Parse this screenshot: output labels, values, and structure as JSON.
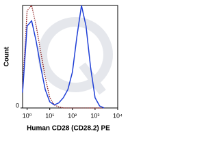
{
  "chart_data": {
    "type": "line",
    "x_label": "Human CD28 (CD28.2) PE",
    "y_label": "Count",
    "x": [
      -0.2,
      0,
      0.2,
      0.4,
      0.6,
      0.8,
      1.0,
      1.2,
      1.4,
      1.6,
      1.8,
      2.0,
      2.2,
      2.4,
      2.6,
      2.8,
      3.0,
      3.2,
      3.4
    ],
    "series": [
      {
        "color": "#8b1a1a",
        "dash": "dotted",
        "values": [
          20,
          95,
          100,
          80,
          55,
          30,
          10,
          3,
          1,
          0,
          0,
          0,
          0,
          0,
          0,
          0,
          0,
          0,
          0
        ]
      },
      {
        "color": "#1f3fd6",
        "dash": "solid",
        "values": [
          15,
          80,
          85,
          65,
          40,
          18,
          6,
          3,
          5,
          10,
          18,
          35,
          70,
          100,
          80,
          40,
          10,
          2,
          0
        ]
      }
    ],
    "xlim": [
      -0.2,
      4
    ],
    "xticks": [
      {
        "value": 0,
        "label": "10⁰"
      },
      {
        "value": 1,
        "label": "10¹"
      },
      {
        "value": 2,
        "label": "10²"
      },
      {
        "value": 3,
        "label": "10³"
      },
      {
        "value": 4,
        "label": "10⁴"
      }
    ],
    "ylim": [
      0,
      100
    ],
    "yticks": [
      0
    ]
  }
}
